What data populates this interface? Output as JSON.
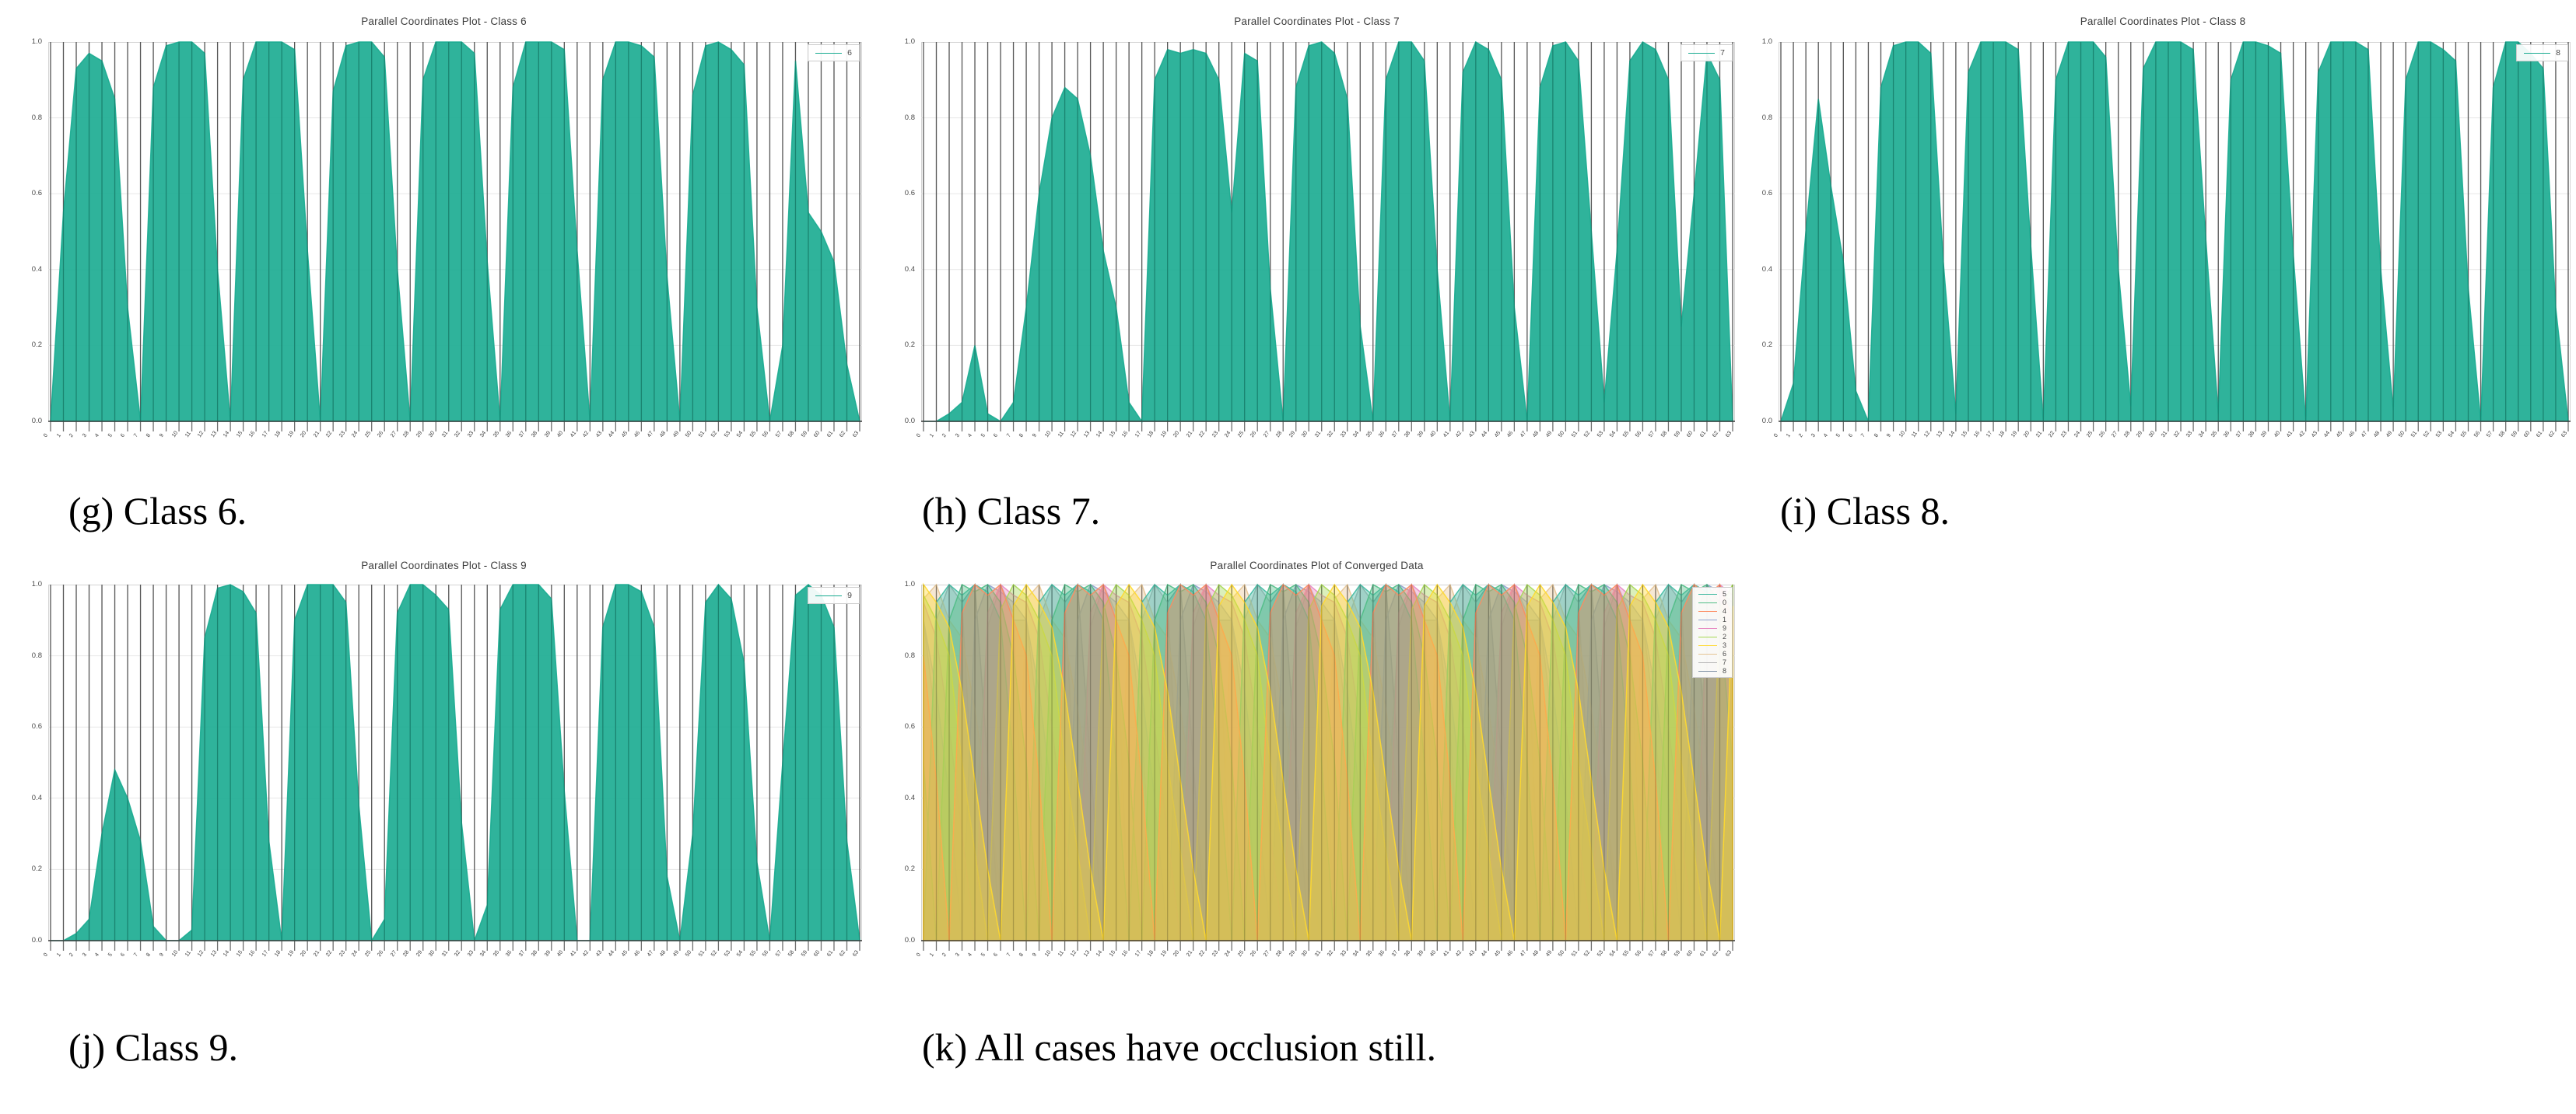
{
  "page": {
    "background": "#ffffff"
  },
  "shared": {
    "axis_line_color": "#6f6f6f",
    "axis_overlay_color": "rgba(0,0,0,0.20)",
    "frame_color": "#d4d4d4",
    "grid_color": "#e7e7e7",
    "bottom_spine_color": "#3c3c3c",
    "teal": "#18ab90",
    "yticks": [
      "0.0",
      "0.2",
      "0.4",
      "0.6",
      "0.8",
      "1.0"
    ],
    "xticklabels": [
      "0",
      "1",
      "2",
      "3",
      "4",
      "5",
      "6",
      "7",
      "8",
      "9",
      "10",
      "11",
      "12",
      "13",
      "14",
      "15",
      "16",
      "17",
      "18",
      "19",
      "20",
      "21",
      "22",
      "23",
      "24",
      "25",
      "26",
      "27",
      "28",
      "29",
      "30",
      "31",
      "32",
      "33",
      "34",
      "35",
      "36",
      "37",
      "38",
      "39",
      "40",
      "41",
      "42",
      "43",
      "44",
      "45",
      "46",
      "47",
      "48",
      "49",
      "50",
      "51",
      "52",
      "53",
      "54",
      "55",
      "56",
      "57",
      "58",
      "59",
      "60",
      "61",
      "62",
      "63"
    ]
  },
  "captions": {
    "g": "(g) Class 6.",
    "h": "(h) Class 7.",
    "i": "(i) Class 8.",
    "j": "(j) Class 9.",
    "k": "(k) All cases have occlusion still."
  },
  "chart_data": [
    {
      "key": "g",
      "type": "parallel-coordinates",
      "title": "Parallel Coordinates Plot - Class 6",
      "xlabel": "",
      "ylabel": "",
      "ylim": [
        0,
        1
      ],
      "axes_count": 64,
      "legend_position": "upper right",
      "legend": [
        {
          "label": "6",
          "color": "#18ab90"
        }
      ],
      "series": [
        {
          "label": "6",
          "color": "#18ab90",
          "fill_opacity": 0.9,
          "envelope": [
            0,
            0.55,
            0.93,
            0.97,
            0.95,
            0.85,
            0.3,
            0,
            0.88,
            0.99,
            1,
            1,
            0.97,
            0.4,
            0,
            0.9,
            1,
            1,
            1,
            0.98,
            0.45,
            0,
            0.87,
            0.99,
            1,
            1,
            0.96,
            0.4,
            0,
            0.9,
            1,
            1,
            1,
            0.97,
            0.42,
            0,
            0.88,
            1,
            1,
            1,
            0.98,
            0.45,
            0,
            0.9,
            1,
            1,
            0.99,
            0.96,
            0.38,
            0,
            0.86,
            0.99,
            1,
            0.98,
            0.94,
            0.3,
            0,
            0.2,
            0.95,
            0.55,
            0.5,
            0.42,
            0.15,
            0
          ]
        }
      ]
    },
    {
      "key": "h",
      "type": "parallel-coordinates",
      "title": "Parallel Coordinates Plot - Class 7",
      "xlabel": "",
      "ylabel": "",
      "ylim": [
        0,
        1
      ],
      "axes_count": 64,
      "legend_position": "upper right",
      "legend": [
        {
          "label": "7",
          "color": "#18ab90"
        }
      ],
      "series": [
        {
          "label": "7",
          "color": "#18ab90",
          "fill_opacity": 0.9,
          "envelope": [
            0,
            0,
            0.02,
            0.05,
            0.2,
            0.02,
            0,
            0.05,
            0.3,
            0.6,
            0.8,
            0.88,
            0.85,
            0.7,
            0.45,
            0.3,
            0.05,
            0,
            0.9,
            0.98,
            0.97,
            0.98,
            0.97,
            0.9,
            0.55,
            0.97,
            0.95,
            0.35,
            0,
            0.88,
            0.99,
            1,
            0.97,
            0.85,
            0.25,
            0,
            0.9,
            1,
            1,
            0.95,
            0.4,
            0,
            0.92,
            1,
            0.98,
            0.9,
            0.3,
            0,
            0.88,
            0.99,
            1,
            0.95,
            0.5,
            0.05,
            0.45,
            0.95,
            1,
            0.98,
            0.9,
            0.25,
            0.6,
            0.97,
            0.9,
            0
          ]
        }
      ]
    },
    {
      "key": "i",
      "type": "parallel-coordinates",
      "title": "Parallel Coordinates Plot - Class 8",
      "xlabel": "",
      "ylabel": "",
      "ylim": [
        0,
        1
      ],
      "axes_count": 64,
      "legend_position": "upper right",
      "legend": [
        {
          "label": "8",
          "color": "#18ab90"
        }
      ],
      "series": [
        {
          "label": "8",
          "color": "#18ab90",
          "fill_opacity": 0.9,
          "envelope": [
            0,
            0.1,
            0.5,
            0.85,
            0.62,
            0.42,
            0.08,
            0,
            0.88,
            0.99,
            1,
            1,
            0.97,
            0.42,
            0.02,
            0.92,
            1,
            1,
            1,
            0.98,
            0.46,
            0,
            0.9,
            1,
            1,
            1,
            0.96,
            0.4,
            0.04,
            0.93,
            1,
            1,
            1,
            0.98,
            0.48,
            0.02,
            0.9,
            1,
            1,
            0.99,
            0.97,
            0.44,
            0,
            0.92,
            1,
            1,
            1,
            0.98,
            0.4,
            0.03,
            0.9,
            1,
            1,
            0.98,
            0.95,
            0.35,
            0,
            0.88,
            1,
            1,
            0.97,
            0.93,
            0.3,
            0
          ]
        }
      ]
    },
    {
      "key": "j",
      "type": "parallel-coordinates",
      "title": "Parallel Coordinates Plot - Class 9",
      "xlabel": "",
      "ylabel": "",
      "ylim": [
        0,
        1
      ],
      "axes_count": 64,
      "legend_position": "upper right",
      "legend": [
        {
          "label": "9",
          "color": "#18ab90"
        }
      ],
      "series": [
        {
          "label": "9",
          "color": "#18ab90",
          "fill_opacity": 0.9,
          "envelope": [
            0,
            0,
            0.02,
            0.06,
            0.3,
            0.48,
            0.4,
            0.28,
            0.04,
            0,
            0,
            0.03,
            0.85,
            0.99,
            1,
            0.98,
            0.92,
            0.28,
            0,
            0.9,
            1,
            1,
            1,
            0.95,
            0.38,
            0,
            0.06,
            0.92,
            1,
            1,
            0.97,
            0.93,
            0.33,
            0,
            0.1,
            0.93,
            1,
            1,
            1,
            0.96,
            0.42,
            0,
            0,
            0.88,
            1,
            1,
            0.98,
            0.88,
            0.18,
            0,
            0.3,
            0.95,
            1,
            0.96,
            0.78,
            0.22,
            0,
            0.5,
            0.97,
            1,
            0.97,
            0.88,
            0.28,
            0
          ]
        }
      ]
    },
    {
      "key": "k",
      "type": "parallel-coordinates",
      "title": "Parallel Coordinates Plot of Converged Data",
      "xlabel": "",
      "ylabel": "",
      "ylim": [
        0,
        1
      ],
      "axes_count": 64,
      "legend_position": "upper right",
      "legend": [
        {
          "label": "5",
          "color": "#3fb9a1"
        },
        {
          "label": "0",
          "color": "#4fbd85"
        },
        {
          "label": "4",
          "color": "#fc8d62"
        },
        {
          "label": "1",
          "color": "#8da0cb"
        },
        {
          "label": "9",
          "color": "#e78ac3"
        },
        {
          "label": "2",
          "color": "#a6d854"
        },
        {
          "label": "3",
          "color": "#ffd92f"
        },
        {
          "label": "6",
          "color": "#e5c494"
        },
        {
          "label": "7",
          "color": "#b3b3b3"
        },
        {
          "label": "8",
          "color": "#7d8fa3"
        }
      ],
      "series": [
        {
          "label": "8",
          "color": "#7d8fa3",
          "fill_opacity": 0.4,
          "repeat": 8,
          "envelope_block": [
            0.9,
            0.6,
            0,
            0.95,
            1,
            0.5,
            0,
            0.9
          ]
        },
        {
          "label": "7",
          "color": "#b3b3b3",
          "fill_opacity": 0.4,
          "repeat": 8,
          "envelope_block": [
            0,
            0.9,
            1,
            0.95,
            0.3,
            0.88,
            1,
            0.92
          ]
        },
        {
          "label": "6",
          "color": "#e5c494",
          "fill_opacity": 0.4,
          "repeat": 8,
          "envelope_block": [
            0.96,
            1,
            0.9,
            0.85,
            0.65,
            0.4,
            0.15,
            0
          ]
        },
        {
          "label": "1",
          "color": "#8da0cb",
          "fill_opacity": 0.4,
          "repeat": 8,
          "envelope_block": [
            0.9,
            0.7,
            0.4,
            0,
            0.9,
            1,
            0.98,
            0.95
          ]
        },
        {
          "label": "9",
          "color": "#e78ac3",
          "fill_opacity": 0.4,
          "repeat": 8,
          "envelope_block": [
            0.95,
            0.85,
            0.6,
            0.3,
            0,
            0.92,
            1,
            0.97
          ]
        },
        {
          "label": "5",
          "color": "#3fb9a1",
          "fill_opacity": 0.4,
          "repeat": 8,
          "envelope_block": [
            0,
            0.95,
            1,
            0.97,
            1,
            0.98,
            0.9,
            0.5
          ]
        },
        {
          "label": "0",
          "color": "#4fbd85",
          "fill_opacity": 0.4,
          "repeat": 8,
          "envelope_block": [
            0.5,
            0,
            0.9,
            1,
            0.98,
            1,
            0.95,
            0.8
          ]
        },
        {
          "label": "2",
          "color": "#a6d854",
          "fill_opacity": 0.4,
          "repeat": 8,
          "envelope_block": [
            0.97,
            0.9,
            0.8,
            0.5,
            0.25,
            0,
            0.93,
            1
          ]
        },
        {
          "label": "4",
          "color": "#fc8d62",
          "fill_opacity": 0.4,
          "repeat": 8,
          "envelope_block": [
            0.8,
            0.45,
            0,
            0.92,
            1,
            0.97,
            1,
            0.9
          ]
        },
        {
          "label": "3",
          "color": "#ffd92f",
          "fill_opacity": 0.4,
          "repeat": 8,
          "envelope_block": [
            1,
            0.95,
            0.88,
            0.7,
            0.45,
            0.2,
            0,
            0.94
          ]
        }
      ]
    }
  ]
}
